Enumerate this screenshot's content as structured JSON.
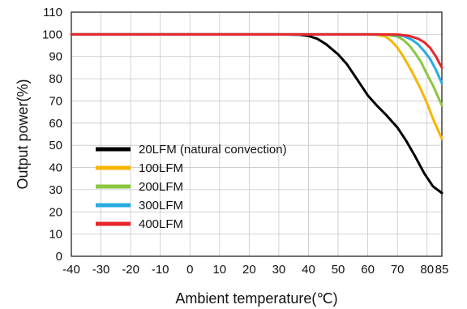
{
  "chart_data": {
    "type": "line",
    "title": "",
    "xlabel": "Ambient temperature(℃)",
    "ylabel": "Output power(%)",
    "xlim": [
      -40,
      85
    ],
    "ylim": [
      0,
      110
    ],
    "x_ticks": [
      -40,
      -30,
      -20,
      -10,
      0,
      10,
      20,
      30,
      40,
      50,
      60,
      70,
      80,
      85
    ],
    "y_ticks": [
      0,
      10,
      20,
      30,
      40,
      50,
      60,
      70,
      80,
      90,
      100,
      110
    ],
    "grid": true,
    "legend_position": "bottom-left",
    "series": [
      {
        "name": "20LFM (natural convection)",
        "color": "#000000",
        "points": [
          [
            -40,
            100
          ],
          [
            30,
            100
          ],
          [
            37,
            99.8
          ],
          [
            40,
            99.3
          ],
          [
            43,
            98
          ],
          [
            46,
            95.5
          ],
          [
            50,
            91
          ],
          [
            53,
            86.5
          ],
          [
            56,
            80.5
          ],
          [
            60,
            72.5
          ],
          [
            63,
            68
          ],
          [
            66,
            64
          ],
          [
            70,
            58
          ],
          [
            73,
            52
          ],
          [
            76,
            45
          ],
          [
            79,
            37.5
          ],
          [
            82,
            31.5
          ],
          [
            85,
            28.5
          ]
        ]
      },
      {
        "name": "100LFM",
        "color": "#f7b500",
        "points": [
          [
            -40,
            100
          ],
          [
            50,
            100
          ],
          [
            58,
            100
          ],
          [
            63,
            99.8
          ],
          [
            66,
            99
          ],
          [
            68,
            97
          ],
          [
            70,
            94
          ],
          [
            72,
            90
          ],
          [
            75,
            83
          ],
          [
            78,
            75
          ],
          [
            80,
            69
          ],
          [
            82,
            62
          ],
          [
            84,
            56
          ],
          [
            85,
            53
          ]
        ]
      },
      {
        "name": "200LFM",
        "color": "#8cc63f",
        "points": [
          [
            -40,
            100
          ],
          [
            60,
            100
          ],
          [
            66,
            99.9
          ],
          [
            70,
            99
          ],
          [
            72,
            97.5
          ],
          [
            74,
            95
          ],
          [
            76,
            91.5
          ],
          [
            78,
            87.5
          ],
          [
            80,
            82
          ],
          [
            82,
            77
          ],
          [
            84,
            71
          ],
          [
            85,
            68
          ]
        ]
      },
      {
        "name": "300LFM",
        "color": "#29abe2",
        "points": [
          [
            -40,
            100
          ],
          [
            62,
            100
          ],
          [
            68,
            99.9
          ],
          [
            72,
            99.3
          ],
          [
            75,
            97.5
          ],
          [
            77,
            95.5
          ],
          [
            79,
            92.5
          ],
          [
            81,
            89
          ],
          [
            83,
            84
          ],
          [
            85,
            78
          ]
        ]
      },
      {
        "name": "400LFM",
        "color": "#e8262d",
        "points": [
          [
            -40,
            100
          ],
          [
            65,
            100
          ],
          [
            70,
            99.9
          ],
          [
            74,
            99.3
          ],
          [
            77,
            98
          ],
          [
            79,
            96.5
          ],
          [
            81,
            94
          ],
          [
            83,
            90
          ],
          [
            84,
            87.5
          ],
          [
            85,
            85
          ]
        ]
      }
    ]
  }
}
